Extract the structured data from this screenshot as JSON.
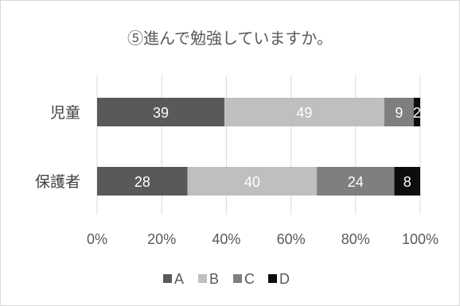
{
  "chart_data": {
    "type": "bar",
    "orientation": "horizontal",
    "stacked": "percent",
    "title": "⑤進んで勉強していますか。",
    "categories": [
      "児童",
      "保護者"
    ],
    "series": [
      {
        "name": "A",
        "values": [
          39,
          28
        ],
        "color": "#595959"
      },
      {
        "name": "B",
        "values": [
          49,
          40
        ],
        "color": "#bfbfbf"
      },
      {
        "name": "C",
        "values": [
          9,
          24
        ],
        "color": "#7f7f7f"
      },
      {
        "name": "D",
        "values": [
          2,
          8
        ],
        "color": "#0d0d0d"
      }
    ],
    "x_ticks": [
      "0%",
      "20%",
      "40%",
      "60%",
      "80%",
      "100%"
    ],
    "xlim": [
      0,
      100
    ],
    "grid": true,
    "legend_position": "bottom"
  }
}
